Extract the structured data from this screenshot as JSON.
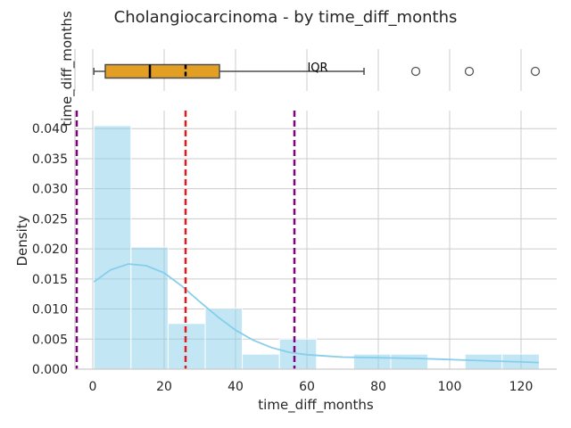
{
  "chart_data": [
    {
      "type": "box",
      "title": "Cholangiocarcinoma - by time_diff_months",
      "ylabel": "time_diff_months",
      "annotation": "IQR",
      "xlim": [
        -5,
        130
      ],
      "box": {
        "whisker_low": 0.3,
        "q1": 3.5,
        "median": 16,
        "mean": 26,
        "q3": 35.5,
        "whisker_high": 76
      },
      "outliers": [
        90.5,
        105.5,
        124
      ],
      "colors": {
        "box": "#e39f24",
        "median": "#000000",
        "outlier": "#555555"
      }
    },
    {
      "type": "histogram",
      "xlabel": "time_diff_months",
      "ylabel": "Density",
      "xlim": [
        -5,
        130
      ],
      "ylim": [
        0,
        0.043
      ],
      "x_ticks": [
        "0",
        "20",
        "40",
        "60",
        "80",
        "100",
        "120"
      ],
      "y_ticks": [
        "0.000",
        "0.005",
        "0.010",
        "0.015",
        "0.020",
        "0.025",
        "0.030",
        "0.035",
        "0.040"
      ],
      "bins": [
        {
          "x0": 0.3,
          "x1": 10.7,
          "density": 0.0405
        },
        {
          "x0": 10.7,
          "x1": 21.1,
          "density": 0.0203
        },
        {
          "x0": 21.1,
          "x1": 31.5,
          "density": 0.0076
        },
        {
          "x0": 31.5,
          "x1": 41.9,
          "density": 0.0101
        },
        {
          "x0": 41.9,
          "x1": 52.3,
          "density": 0.0025
        },
        {
          "x0": 52.3,
          "x1": 62.7,
          "density": 0.005
        },
        {
          "x0": 62.7,
          "x1": 73.1,
          "density": 0.0
        },
        {
          "x0": 73.1,
          "x1": 83.5,
          "density": 0.0025
        },
        {
          "x0": 83.5,
          "x1": 93.9,
          "density": 0.0025
        },
        {
          "x0": 93.9,
          "x1": 104.3,
          "density": 0.0
        },
        {
          "x0": 104.3,
          "x1": 114.7,
          "density": 0.0025
        },
        {
          "x0": 114.7,
          "x1": 125.1,
          "density": 0.0025
        }
      ],
      "kde": [
        [
          0.3,
          0.0145
        ],
        [
          5,
          0.0165
        ],
        [
          10,
          0.0175
        ],
        [
          15,
          0.0172
        ],
        [
          20,
          0.016
        ],
        [
          25,
          0.0138
        ],
        [
          30,
          0.0112
        ],
        [
          35,
          0.0087
        ],
        [
          40,
          0.0065
        ],
        [
          45,
          0.0048
        ],
        [
          50,
          0.0036
        ],
        [
          55,
          0.0028
        ],
        [
          60,
          0.0024
        ],
        [
          65,
          0.0022
        ],
        [
          70,
          0.002
        ],
        [
          80,
          0.0019
        ],
        [
          90,
          0.0018
        ],
        [
          100,
          0.0016
        ],
        [
          110,
          0.0014
        ],
        [
          120,
          0.0012
        ],
        [
          125,
          0.0011
        ]
      ],
      "vlines": [
        {
          "x": 26,
          "color": "#e31a1c"
        },
        {
          "x": 56.5,
          "color": "#800080"
        },
        {
          "x": -4.5,
          "color": "#800080"
        }
      ],
      "colors": {
        "bar": "#87ceeb",
        "kde": "#87ceeb",
        "grid": "#cccccc"
      }
    }
  ]
}
